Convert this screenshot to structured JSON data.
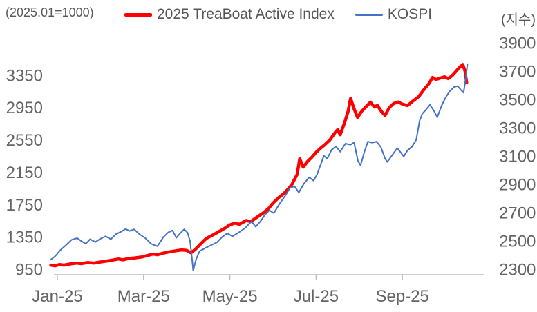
{
  "header": {
    "left_note": "(2025.01=1000)",
    "right_note": "(지수)"
  },
  "legend": [
    {
      "label": "2025 TreaBoat Active Index",
      "color": "#ff0000"
    },
    {
      "label": "KOSPI",
      "color": "#4472c4"
    }
  ],
  "colors": {
    "treaboat": "#ff0000",
    "kospi": "#4472c4",
    "axis_text": "#646464",
    "axis_line": "#bdbdbd"
  },
  "chart_data": {
    "type": "line",
    "title": "",
    "x_unit": "months since Jan-2025 (0 = Jan-25 tick)",
    "x_range": [
      -0.2,
      9.88
    ],
    "grid": false,
    "legend_position": "top-center",
    "x_ticks": [
      {
        "t": 0,
        "label": "Jan-25"
      },
      {
        "t": 2,
        "label": "Mar-25"
      },
      {
        "t": 4,
        "label": "May-25"
      },
      {
        "t": 6,
        "label": "Jul-25"
      },
      {
        "t": 8,
        "label": "Sep-25"
      }
    ],
    "left_axis": {
      "title": "(2025.01=1000)",
      "min": 950,
      "max": 3750,
      "tick_step": 400,
      "labels": [
        950,
        1350,
        1750,
        2150,
        2550,
        2950,
        3350
      ]
    },
    "right_axis": {
      "title": "(지수)",
      "min": 2300,
      "max": 3900,
      "tick_step": 200,
      "labels": [
        2300,
        2500,
        2700,
        2900,
        3100,
        3300,
        3500,
        3700,
        3900
      ]
    },
    "series": [
      {
        "name": "2025 TreaBoat Active Index",
        "axis": "left",
        "color": "#ff0000",
        "stroke_width": 4.5,
        "points": [
          [
            -0.15,
            1000
          ],
          [
            -0.05,
            992
          ],
          [
            0.05,
            1008
          ],
          [
            0.15,
            1000
          ],
          [
            0.3,
            1015
          ],
          [
            0.45,
            1026
          ],
          [
            0.55,
            1018
          ],
          [
            0.7,
            1032
          ],
          [
            0.85,
            1026
          ],
          [
            1.0,
            1040
          ],
          [
            1.15,
            1052
          ],
          [
            1.3,
            1064
          ],
          [
            1.42,
            1076
          ],
          [
            1.52,
            1066
          ],
          [
            1.65,
            1082
          ],
          [
            1.8,
            1090
          ],
          [
            1.95,
            1100
          ],
          [
            2.1,
            1120
          ],
          [
            2.22,
            1138
          ],
          [
            2.32,
            1128
          ],
          [
            2.45,
            1148
          ],
          [
            2.6,
            1165
          ],
          [
            2.75,
            1178
          ],
          [
            2.88,
            1188
          ],
          [
            3.0,
            1182
          ],
          [
            3.1,
            1152
          ],
          [
            3.2,
            1196
          ],
          [
            3.32,
            1262
          ],
          [
            3.45,
            1330
          ],
          [
            3.6,
            1372
          ],
          [
            3.75,
            1416
          ],
          [
            3.88,
            1455
          ],
          [
            4.0,
            1498
          ],
          [
            4.12,
            1520
          ],
          [
            4.22,
            1506
          ],
          [
            4.38,
            1552
          ],
          [
            4.48,
            1538
          ],
          [
            4.62,
            1590
          ],
          [
            4.78,
            1648
          ],
          [
            4.9,
            1702
          ],
          [
            5.0,
            1768
          ],
          [
            5.12,
            1830
          ],
          [
            5.25,
            1885
          ],
          [
            5.35,
            1940
          ],
          [
            5.44,
            2000
          ],
          [
            5.5,
            2062
          ],
          [
            5.56,
            2120
          ],
          [
            5.62,
            2316
          ],
          [
            5.7,
            2212
          ],
          [
            5.8,
            2282
          ],
          [
            5.9,
            2335
          ],
          [
            6.0,
            2395
          ],
          [
            6.1,
            2445
          ],
          [
            6.2,
            2490
          ],
          [
            6.32,
            2550
          ],
          [
            6.44,
            2640
          ],
          [
            6.5,
            2676
          ],
          [
            6.56,
            2614
          ],
          [
            6.66,
            2762
          ],
          [
            6.74,
            2900
          ],
          [
            6.8,
            3062
          ],
          [
            6.88,
            2935
          ],
          [
            6.96,
            2827
          ],
          [
            7.06,
            2905
          ],
          [
            7.16,
            2962
          ],
          [
            7.26,
            3016
          ],
          [
            7.35,
            2956
          ],
          [
            7.42,
            2976
          ],
          [
            7.52,
            2898
          ],
          [
            7.6,
            2853
          ],
          [
            7.7,
            2952
          ],
          [
            7.8,
            3000
          ],
          [
            7.9,
            3018
          ],
          [
            8.0,
            2992
          ],
          [
            8.12,
            2974
          ],
          [
            8.25,
            3032
          ],
          [
            8.38,
            3085
          ],
          [
            8.52,
            3185
          ],
          [
            8.62,
            3248
          ],
          [
            8.7,
            3322
          ],
          [
            8.78,
            3296
          ],
          [
            8.88,
            3315
          ],
          [
            8.98,
            3330
          ],
          [
            9.06,
            3308
          ],
          [
            9.15,
            3342
          ],
          [
            9.23,
            3390
          ],
          [
            9.31,
            3438
          ],
          [
            9.4,
            3482
          ],
          [
            9.45,
            3404
          ],
          [
            9.49,
            3258
          ]
        ]
      },
      {
        "name": "KOSPI",
        "axis": "right",
        "color": "#4472c4",
        "stroke_width": 2,
        "points": [
          [
            -0.15,
            2368
          ],
          [
            -0.05,
            2392
          ],
          [
            0.08,
            2438
          ],
          [
            0.2,
            2470
          ],
          [
            0.33,
            2508
          ],
          [
            0.46,
            2520
          ],
          [
            0.56,
            2498
          ],
          [
            0.66,
            2480
          ],
          [
            0.76,
            2512
          ],
          [
            0.88,
            2492
          ],
          [
            1.0,
            2515
          ],
          [
            1.12,
            2532
          ],
          [
            1.24,
            2512
          ],
          [
            1.36,
            2548
          ],
          [
            1.48,
            2566
          ],
          [
            1.58,
            2584
          ],
          [
            1.68,
            2570
          ],
          [
            1.78,
            2582
          ],
          [
            1.9,
            2548
          ],
          [
            2.04,
            2520
          ],
          [
            2.18,
            2478
          ],
          [
            2.32,
            2462
          ],
          [
            2.46,
            2528
          ],
          [
            2.57,
            2560
          ],
          [
            2.67,
            2574
          ],
          [
            2.76,
            2522
          ],
          [
            2.85,
            2554
          ],
          [
            2.94,
            2582
          ],
          [
            3.02,
            2558
          ],
          [
            3.08,
            2495
          ],
          [
            3.15,
            2292
          ],
          [
            3.22,
            2372
          ],
          [
            3.3,
            2428
          ],
          [
            3.42,
            2448
          ],
          [
            3.55,
            2468
          ],
          [
            3.7,
            2490
          ],
          [
            3.82,
            2528
          ],
          [
            3.94,
            2553
          ],
          [
            4.06,
            2533
          ],
          [
            4.2,
            2558
          ],
          [
            4.36,
            2592
          ],
          [
            4.5,
            2638
          ],
          [
            4.6,
            2600
          ],
          [
            4.72,
            2642
          ],
          [
            4.82,
            2688
          ],
          [
            4.92,
            2716
          ],
          [
            5.02,
            2696
          ],
          [
            5.15,
            2762
          ],
          [
            5.28,
            2818
          ],
          [
            5.4,
            2876
          ],
          [
            5.5,
            2886
          ],
          [
            5.6,
            2842
          ],
          [
            5.72,
            2906
          ],
          [
            5.84,
            2950
          ],
          [
            5.94,
            2926
          ],
          [
            6.02,
            2968
          ],
          [
            6.1,
            3034
          ],
          [
            6.18,
            3102
          ],
          [
            6.26,
            3082
          ],
          [
            6.36,
            3145
          ],
          [
            6.46,
            3168
          ],
          [
            6.56,
            3130
          ],
          [
            6.68,
            3188
          ],
          [
            6.8,
            3180
          ],
          [
            6.88,
            3196
          ],
          [
            6.97,
            3066
          ],
          [
            7.03,
            3034
          ],
          [
            7.12,
            3130
          ],
          [
            7.2,
            3202
          ],
          [
            7.3,
            3194
          ],
          [
            7.4,
            3202
          ],
          [
            7.5,
            3164
          ],
          [
            7.6,
            3082
          ],
          [
            7.65,
            3058
          ],
          [
            7.74,
            3096
          ],
          [
            7.82,
            3130
          ],
          [
            7.88,
            3155
          ],
          [
            7.95,
            3130
          ],
          [
            8.03,
            3096
          ],
          [
            8.12,
            3140
          ],
          [
            8.22,
            3165
          ],
          [
            8.32,
            3214
          ],
          [
            8.4,
            3350
          ],
          [
            8.46,
            3398
          ],
          [
            8.56,
            3432
          ],
          [
            8.64,
            3462
          ],
          [
            8.73,
            3420
          ],
          [
            8.81,
            3374
          ],
          [
            8.91,
            3456
          ],
          [
            9.0,
            3512
          ],
          [
            9.1,
            3558
          ],
          [
            9.2,
            3588
          ],
          [
            9.28,
            3594
          ],
          [
            9.36,
            3566
          ],
          [
            9.42,
            3548
          ],
          [
            9.47,
            3652
          ],
          [
            9.51,
            3750
          ]
        ]
      }
    ]
  }
}
